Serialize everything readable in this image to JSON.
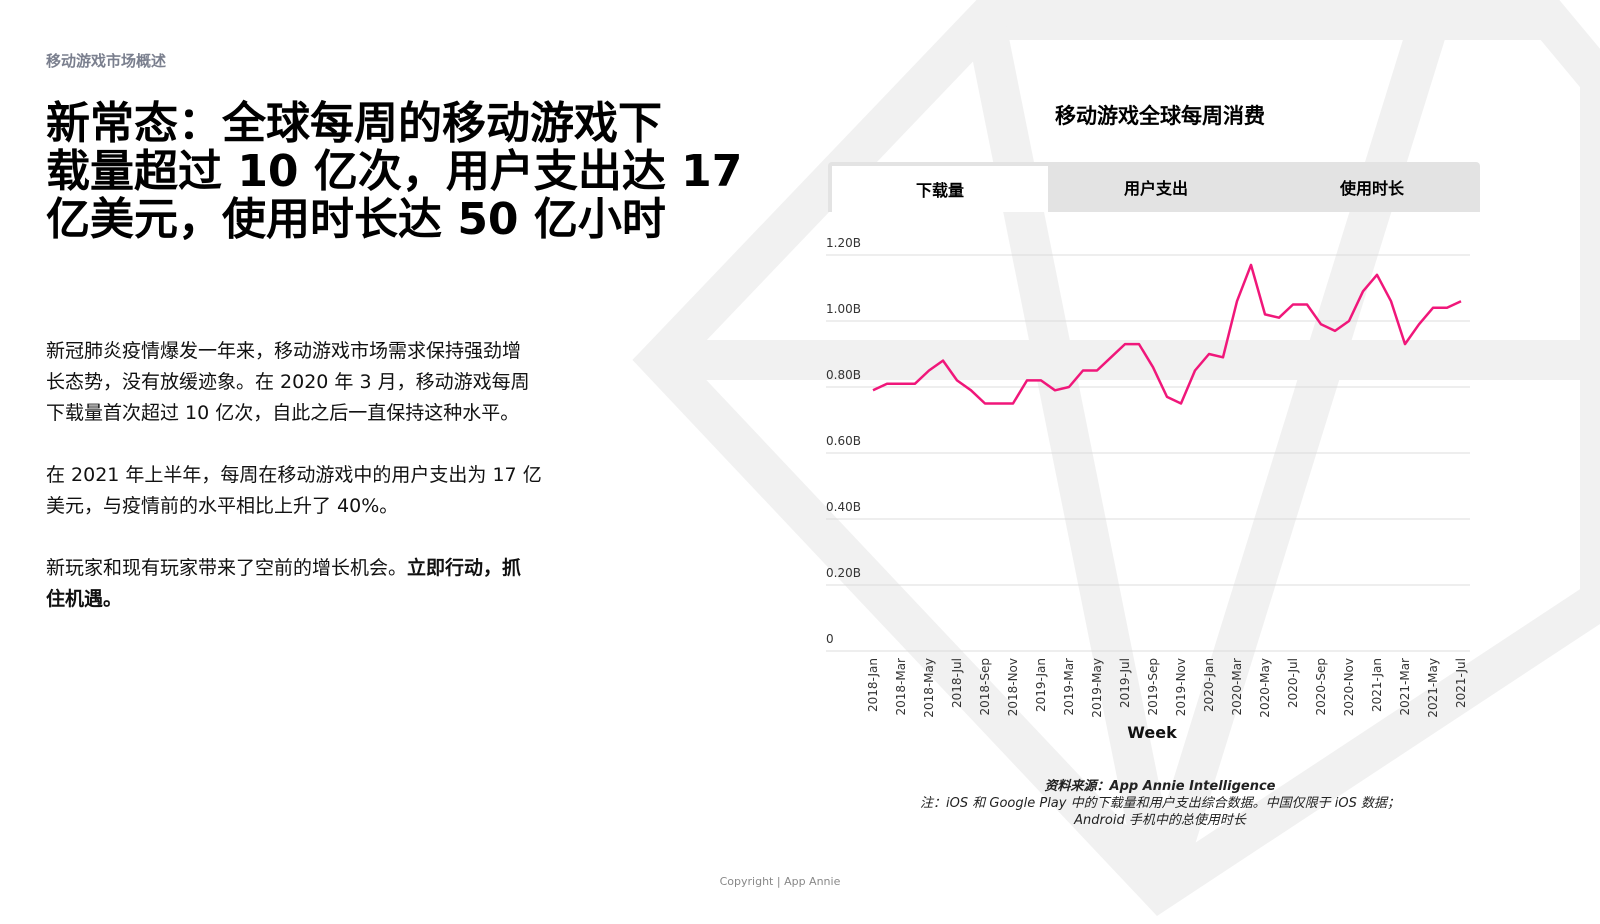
{
  "header": {
    "section": "移动游戏市场概述",
    "title_lines": [
      "新常态：全球每周的移动游戏下",
      "载量超过 10 亿次，用户支出达 17",
      "亿美元，使用时长达 50 亿小时"
    ]
  },
  "body": {
    "paragraphs": [
      {
        "lines": [
          "新冠肺炎疫情爆发一年来，移动游戏市场需求保持强劲增",
          "长态势，没有放缓迹象。在 2020 年 3 月，移动游戏每周",
          "下载量首次超过 10 亿次，自此之后一直保持这种水平。"
        ]
      },
      {
        "lines": [
          "在 2021 年上半年，每周在移动游戏中的用户支出为 17 亿",
          "美元，与疫情前的水平相比上升了 40%。"
        ]
      },
      {
        "text": "新玩家和现有玩家带来了空前的增长机会。",
        "bold_lines": [
          "立即行动，抓",
          "住机遇。"
        ]
      }
    ]
  },
  "tabs": [
    "下载量",
    "用户支出",
    "使用时长"
  ],
  "chart_data": {
    "type": "line",
    "title": "移动游戏全球每周消费",
    "x_label": "Week",
    "color": "#f0177a",
    "categories": [
      "2018-Jan",
      null,
      "2018-Mar",
      null,
      "2018-May",
      null,
      "2018-Jul",
      null,
      "2018-Sep",
      null,
      "2018-Nov",
      null,
      "2019-Jan",
      null,
      "2019-Mar",
      null,
      "2019-May",
      null,
      "2019-Jul",
      null,
      "2019-Sep",
      null,
      "2019-Nov",
      null,
      "2020-Jan",
      null,
      "2020-Mar",
      null,
      "2020-May",
      null,
      "2020-Jul",
      null,
      "2020-Sep",
      null,
      "2020-Nov",
      null,
      "2021-Jan",
      null,
      "2021-Mar",
      null,
      "2021-May",
      null,
      "2021-Jul"
    ],
    "values": [
      0.79,
      0.81,
      0.81,
      0.81,
      0.85,
      0.88,
      0.82,
      0.79,
      0.75,
      0.75,
      0.75,
      0.82,
      0.82,
      0.79,
      0.8,
      0.85,
      0.85,
      0.89,
      0.93,
      0.93,
      0.86,
      0.77,
      0.75,
      0.85,
      0.9,
      0.89,
      1.06,
      1.17,
      1.02,
      1.01,
      1.05,
      1.05,
      0.99,
      0.97,
      1.0,
      1.09,
      1.14,
      1.06,
      0.93,
      0.99,
      1.04,
      1.04,
      1.06
    ],
    "ylim": [
      0,
      1.2
    ],
    "yticks": [
      0,
      {
        "value": 0.2,
        "label": "0.20B"
      },
      {
        "value": 0.4,
        "label": "0.40B"
      },
      {
        "value": 0.6,
        "label": "0.60B"
      },
      {
        "value": 0.8,
        "label": "0.80B"
      },
      {
        "value": 1.0,
        "label": "1.00B"
      },
      {
        "value": 1.2,
        "label": "1.20B"
      }
    ],
    "grid": true
  },
  "source": {
    "heading": "资料来源：App Annie Intelligence",
    "note_lines": [
      "注：iOS 和 Google Play 中的下载量和用户支出综合数据。中国仅限于 iOS 数据；",
      "Android 手机中的总使用时长"
    ]
  },
  "footer": "Copyright | App Annie"
}
